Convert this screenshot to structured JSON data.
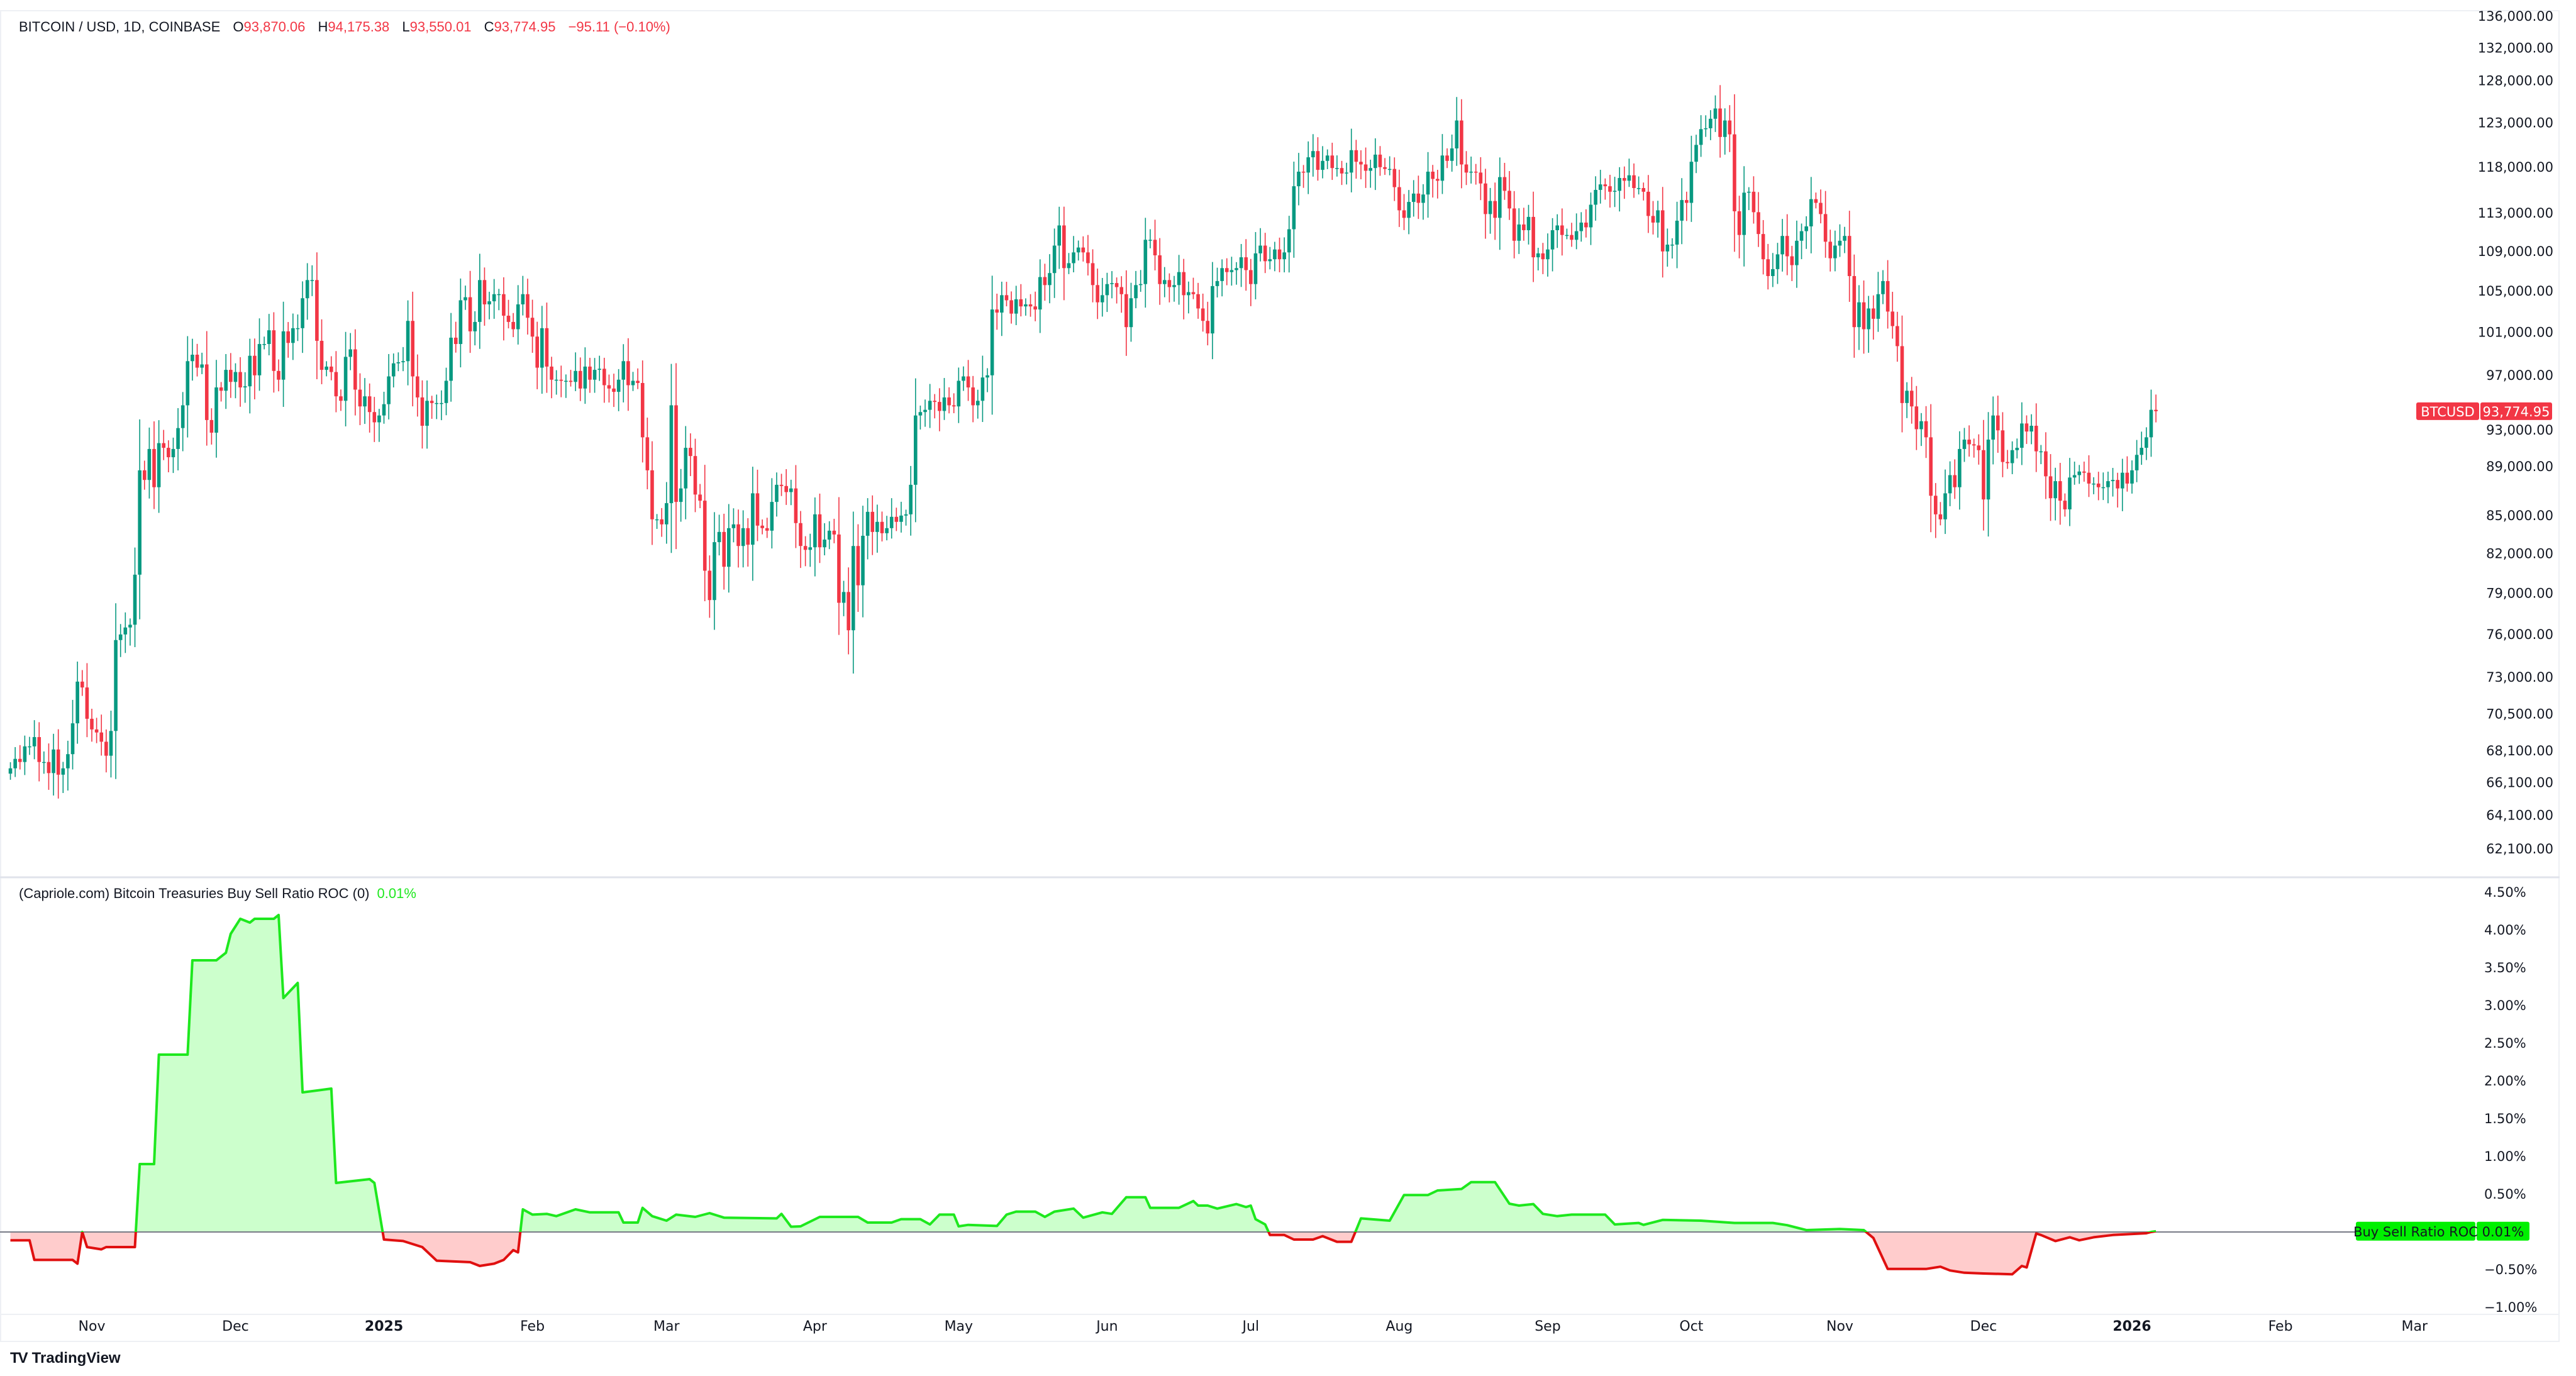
{
  "header": {
    "symbol": "BITCOIN / USD, 1D, COINBASE",
    "open_label": "O",
    "open": "93,870.06",
    "high_label": "H",
    "high": "94,175.38",
    "low_label": "L",
    "low": "93,550.01",
    "close_label": "C",
    "close": "93,774.95",
    "change": "−95.11 (−0.10%)"
  },
  "indicator_header": {
    "title": "(Capriole.com) Bitcoin Treasuries Buy Sell Ratio ROC (0)",
    "value": "0.01%"
  },
  "price_label": {
    "symbol": "BTCUSD",
    "value": "93,774.95",
    "price": 93774.95
  },
  "indicator_label": {
    "name": "Buy Sell Ratio ROC",
    "value": "0.01%",
    "numeric": 0.01
  },
  "footer": {
    "logo_text": "TradingView",
    "logo_mark": "TV"
  },
  "colors": {
    "up": "#089981",
    "down": "#f23645",
    "ind_pos": "#1ee81e",
    "ind_pos_fill": "#ccffcc",
    "ind_neg": "#e01010",
    "ind_neg_fill": "#ffcccc",
    "label_red": "#f23645",
    "label_green": "#00f000"
  },
  "chart_data": [
    {
      "type": "candlestick",
      "series": "BTCUSD daily",
      "y_scale": "log",
      "ylim": [
        62100,
        136000
      ],
      "price_ticks": [
        "136,000.00",
        "132,000.00",
        "128,000.00",
        "123,000.00",
        "118,000.00",
        "113,000.00",
        "109,000.00",
        "105,000.00",
        "101,000.00",
        "97,000.00",
        "93,000.00",
        "89,000.00",
        "85,000.00",
        "82,000.00",
        "79,000.00",
        "76,000.00",
        "73,000.00",
        "70,500.00",
        "68,100.00",
        "66,100.00",
        "64,100.00",
        "62,100.00"
      ],
      "first_date": "2024-10-15",
      "closes": [
        67000,
        67600,
        67400,
        68400,
        68400,
        69000,
        67400,
        67400,
        66700,
        68200,
        66600,
        67000,
        67900,
        69900,
        72700,
        72300,
        70200,
        69500,
        69300,
        68700,
        67800,
        69400,
        75600,
        76000,
        76500,
        76700,
        80400,
        88700,
        87900,
        90500,
        87300,
        91000,
        90600,
        89800,
        90500,
        92300,
        94300,
        98300,
        98900,
        97700,
        98000,
        93000,
        91900,
        95900,
        95600,
        97500,
        96400,
        97300,
        95900,
        96000,
        98800,
        97000,
        99900,
        99900,
        101200,
        97400,
        96600,
        101100,
        100000,
        101400,
        101400,
        104300,
        106100,
        106100,
        100200,
        97500,
        97800,
        97300,
        95100,
        94700,
        98700,
        99400,
        95700,
        94200,
        95100,
        93700,
        92800,
        93400,
        94400,
        96900,
        98100,
        98200,
        98300,
        102100,
        96900,
        95000,
        92500,
        94700,
        94500,
        94500,
        94500,
        96500,
        100500,
        99900,
        104100,
        104400,
        101100,
        102000,
        106100,
        103700,
        104000,
        104700,
        104700,
        102600,
        102000,
        101300,
        103700,
        104700,
        102400,
        100600,
        97700,
        101400,
        97800,
        96600,
        96600,
        96500,
        96500,
        96400,
        97400,
        95800,
        97800,
        96600,
        97500,
        97600,
        96100,
        95800,
        95500,
        96600,
        98300,
        96100,
        96500,
        96300,
        91500,
        88700,
        84700,
        84700,
        84300,
        86000,
        94300,
        86100,
        87200,
        90600,
        89900,
        86700,
        86200,
        80700,
        78500,
        82900,
        83700,
        81000,
        84000,
        84300,
        82600,
        84000,
        82700,
        86800,
        84200,
        84000,
        83800,
        86100,
        87500,
        87400,
        86900,
        87200,
        84400,
        82600,
        82300,
        82500,
        85100,
        82500,
        83100,
        83800,
        83500,
        78300,
        79100,
        76300,
        82600,
        79600,
        83400,
        85300,
        83700,
        84500,
        83600,
        84000,
        84900,
        84500,
        85000,
        85100,
        87500,
        93400,
        93700,
        93900,
        94700,
        94600,
        93800,
        95000,
        94300,
        94200,
        96500,
        96900,
        95900,
        94300,
        94700,
        96800,
        97000,
        103200,
        102900,
        104600,
        104100,
        102800,
        104200,
        103500,
        103700,
        103500,
        103200,
        106400,
        105600,
        106800,
        109600,
        111700,
        107300,
        107800,
        108900,
        109400,
        108900,
        107800,
        105600,
        103900,
        104600,
        105700,
        105800,
        105400,
        104700,
        101500,
        104300,
        105600,
        105700,
        110200,
        110200,
        108600,
        105700,
        106100,
        105400,
        105600,
        106900,
        104600,
        104900,
        104700,
        103300,
        102100,
        100900,
        105500,
        106000,
        107300,
        106900,
        107100,
        107300,
        108400,
        107100,
        105700,
        108800,
        109600,
        108000,
        108200,
        109200,
        108200,
        108900,
        111300,
        115900,
        117500,
        117400,
        119100,
        119800,
        117700,
        118700,
        119300,
        117900,
        117900,
        117300,
        117400,
        119900,
        118600,
        118300,
        117600,
        117900,
        119400,
        118000,
        117800,
        117800,
        115800,
        113300,
        112500,
        114200,
        115100,
        114100,
        115000,
        117500,
        116700,
        116500,
        119300,
        118700,
        120100,
        123300,
        118300,
        117400,
        117500,
        117400,
        116200,
        112900,
        114300,
        112500,
        116900,
        115400,
        113500,
        110100,
        111800,
        111200,
        112600,
        108400,
        108800,
        108200,
        109200,
        111200,
        111700,
        110700,
        110700,
        110200,
        111100,
        112000,
        111500,
        113900,
        115500,
        116100,
        115900,
        115300,
        115400,
        116800,
        116500,
        117100,
        115700,
        115700,
        115300,
        112700,
        112000,
        113300,
        109000,
        109700,
        109700,
        112200,
        114400,
        114100,
        118600,
        120500,
        122300,
        122400,
        123500,
        124700,
        121400,
        123300,
        121700,
        113200,
        110700,
        115200,
        115300,
        113100,
        110800,
        108200,
        106500,
        107200,
        108700,
        110600,
        108500,
        107600,
        110100,
        111100,
        111600,
        114500,
        114100,
        112900,
        110000,
        108300,
        109600,
        110100,
        110600,
        106500,
        101500,
        103900,
        101300,
        103300,
        102300,
        104700,
        106000,
        103000,
        101600,
        99700,
        94500,
        95600,
        94200,
        92200,
        92900,
        91500,
        86600,
        85100,
        84700,
        86800,
        88300,
        87300,
        90500,
        91300,
        90900,
        90800,
        90400,
        86300,
        91300,
        93400,
        92100,
        89400,
        89300,
        90400,
        90600,
        92700,
        92000,
        92500,
        90300,
        90300,
        88200,
        86400,
        87800,
        86200,
        85500,
        88100,
        88300,
        88600,
        88500,
        87600,
        87600,
        87300,
        87300,
        87800,
        87900,
        87200,
        88500,
        87600,
        88700,
        90000,
        90600,
        91500,
        93900,
        93775
      ]
    },
    {
      "type": "area",
      "series": "Buy Sell Ratio ROC",
      "unit": "%",
      "ylim": [
        -1.0,
        4.5
      ],
      "baseline": 0,
      "value_ticks": [
        "4.50%",
        "4.00%",
        "3.50%",
        "3.00%",
        "2.50%",
        "2.00%",
        "1.50%",
        "1.00%",
        "0.50%",
        "−0.50%",
        "−1.00%"
      ],
      "points": [
        [
          "2024-10-15",
          -0.11
        ],
        [
          "2024-10-19",
          -0.11
        ],
        [
          "2024-10-20",
          -0.37
        ],
        [
          "2024-10-28",
          -0.37
        ],
        [
          "2024-10-29",
          -0.42
        ],
        [
          "2024-10-30",
          0.0
        ],
        [
          "2024-10-31",
          -0.2
        ],
        [
          "2024-11-03",
          -0.23
        ],
        [
          "2024-11-04",
          -0.2
        ],
        [
          "2024-11-10",
          -0.2
        ],
        [
          "2024-11-11",
          0.9
        ],
        [
          "2024-11-14",
          0.9
        ],
        [
          "2024-11-15",
          2.35
        ],
        [
          "2024-11-21",
          2.35
        ],
        [
          "2024-11-22",
          3.6
        ],
        [
          "2024-11-27",
          3.6
        ],
        [
          "2024-11-29",
          3.7
        ],
        [
          "2024-11-30",
          3.95
        ],
        [
          "2024-12-02",
          4.15
        ],
        [
          "2024-12-04",
          4.1
        ],
        [
          "2024-12-05",
          4.15
        ],
        [
          "2024-12-09",
          4.15
        ],
        [
          "2024-12-10",
          4.2
        ],
        [
          "2024-12-11",
          3.1
        ],
        [
          "2024-12-14",
          3.3
        ],
        [
          "2024-12-15",
          1.85
        ],
        [
          "2024-12-21",
          1.9
        ],
        [
          "2024-12-22",
          0.65
        ],
        [
          "2024-12-29",
          0.7
        ],
        [
          "2024-12-30",
          0.65
        ],
        [
          "2025-01-01",
          -0.1
        ],
        [
          "2025-01-05",
          -0.12
        ],
        [
          "2025-01-09",
          -0.2
        ],
        [
          "2025-01-12",
          -0.38
        ],
        [
          "2025-01-19",
          -0.4
        ],
        [
          "2025-01-21",
          -0.45
        ],
        [
          "2025-01-24",
          -0.42
        ],
        [
          "2025-01-26",
          -0.37
        ],
        [
          "2025-01-28",
          -0.24
        ],
        [
          "2025-01-29",
          -0.27
        ],
        [
          "2025-01-30",
          0.3
        ],
        [
          "2025-02-01",
          0.23
        ],
        [
          "2025-02-04",
          0.24
        ],
        [
          "2025-02-06",
          0.21
        ],
        [
          "2025-02-10",
          0.3
        ],
        [
          "2025-02-13",
          0.26
        ],
        [
          "2025-02-19",
          0.26
        ],
        [
          "2025-02-20",
          0.125
        ],
        [
          "2025-02-23",
          0.125
        ],
        [
          "2025-02-24",
          0.32
        ],
        [
          "2025-02-26",
          0.21
        ],
        [
          "2025-03-01",
          0.15
        ],
        [
          "2025-03-03",
          0.23
        ],
        [
          "2025-03-07",
          0.2
        ],
        [
          "2025-03-10",
          0.25
        ],
        [
          "2025-03-13",
          0.19
        ],
        [
          "2025-03-24",
          0.18
        ],
        [
          "2025-03-25",
          0.24
        ],
        [
          "2025-03-27",
          0.07
        ],
        [
          "2025-03-29",
          0.075
        ],
        [
          "2025-04-02",
          0.2
        ],
        [
          "2025-04-10",
          0.2
        ],
        [
          "2025-04-12",
          0.125
        ],
        [
          "2025-04-17",
          0.125
        ],
        [
          "2025-04-19",
          0.17
        ],
        [
          "2025-04-23",
          0.17
        ],
        [
          "2025-04-25",
          0.1
        ],
        [
          "2025-04-27",
          0.23
        ],
        [
          "2025-04-30",
          0.23
        ],
        [
          "2025-05-01",
          0.075
        ],
        [
          "2025-05-03",
          0.094
        ],
        [
          "2025-05-09",
          0.08
        ],
        [
          "2025-05-11",
          0.23
        ],
        [
          "2025-05-13",
          0.27
        ],
        [
          "2025-05-17",
          0.27
        ],
        [
          "2025-05-19",
          0.2
        ],
        [
          "2025-05-21",
          0.27
        ],
        [
          "2025-05-25",
          0.31
        ],
        [
          "2025-05-27",
          0.19
        ],
        [
          "2025-05-31",
          0.26
        ],
        [
          "2025-06-02",
          0.24
        ],
        [
          "2025-06-05",
          0.46
        ],
        [
          "2025-06-09",
          0.46
        ],
        [
          "2025-06-10",
          0.32
        ],
        [
          "2025-06-16",
          0.32
        ],
        [
          "2025-06-19",
          0.41
        ],
        [
          "2025-06-20",
          0.35
        ],
        [
          "2025-06-22",
          0.35
        ],
        [
          "2025-06-24",
          0.31
        ],
        [
          "2025-06-28",
          0.37
        ],
        [
          "2025-06-30",
          0.33
        ],
        [
          "2025-07-01",
          0.35
        ],
        [
          "2025-07-02",
          0.17
        ],
        [
          "2025-07-04",
          0.1
        ],
        [
          "2025-07-05",
          -0.04
        ],
        [
          "2025-07-08",
          -0.04
        ],
        [
          "2025-07-10",
          -0.1
        ],
        [
          "2025-07-14",
          -0.1
        ],
        [
          "2025-07-16",
          -0.055
        ],
        [
          "2025-07-19",
          -0.13
        ],
        [
          "2025-07-22",
          -0.13
        ],
        [
          "2025-07-24",
          0.18
        ],
        [
          "2025-07-30",
          0.15
        ],
        [
          "2025-08-02",
          0.49
        ],
        [
          "2025-08-07",
          0.49
        ],
        [
          "2025-08-09",
          0.55
        ],
        [
          "2025-08-14",
          0.57
        ],
        [
          "2025-08-16",
          0.66
        ],
        [
          "2025-08-21",
          0.66
        ],
        [
          "2025-08-24",
          0.375
        ],
        [
          "2025-08-26",
          0.35
        ],
        [
          "2025-08-29",
          0.37
        ],
        [
          "2025-08-31",
          0.24
        ],
        [
          "2025-09-03",
          0.21
        ],
        [
          "2025-09-06",
          0.23
        ],
        [
          "2025-09-13",
          0.23
        ],
        [
          "2025-09-15",
          0.1
        ],
        [
          "2025-09-20",
          0.12
        ],
        [
          "2025-09-21",
          0.094
        ],
        [
          "2025-09-25",
          0.16
        ],
        [
          "2025-10-03",
          0.15
        ],
        [
          "2025-10-10",
          0.12
        ],
        [
          "2025-10-18",
          0.12
        ],
        [
          "2025-10-21",
          0.09
        ],
        [
          "2025-10-25",
          0.025
        ],
        [
          "2025-11-01",
          0.04
        ],
        [
          "2025-11-06",
          0.025
        ],
        [
          "2025-11-08",
          -0.08
        ],
        [
          "2025-11-11",
          -0.49
        ],
        [
          "2025-11-19",
          -0.49
        ],
        [
          "2025-11-22",
          -0.46
        ],
        [
          "2025-11-24",
          -0.51
        ],
        [
          "2025-11-27",
          -0.54
        ],
        [
          "2025-12-01",
          -0.55
        ],
        [
          "2025-12-07",
          -0.56
        ],
        [
          "2025-12-09",
          -0.45
        ],
        [
          "2025-12-10",
          -0.47
        ],
        [
          "2025-12-12",
          -0.02
        ],
        [
          "2025-12-13",
          -0.04
        ],
        [
          "2025-12-16",
          -0.12
        ],
        [
          "2025-12-19",
          -0.07
        ],
        [
          "2025-12-21",
          -0.11
        ],
        [
          "2025-12-24",
          -0.07
        ],
        [
          "2025-12-28",
          -0.04
        ],
        [
          "2026-01-04",
          -0.017
        ],
        [
          "2026-01-05",
          0.0
        ],
        [
          "2026-01-06",
          0.01
        ]
      ]
    }
  ],
  "time_axis": [
    {
      "label": "Nov",
      "date": "2024-11-01",
      "bold": false
    },
    {
      "label": "Dec",
      "date": "2024-12-01",
      "bold": false
    },
    {
      "label": "2025",
      "date": "2025-01-01",
      "bold": true
    },
    {
      "label": "Feb",
      "date": "2025-02-01",
      "bold": false
    },
    {
      "label": "Mar",
      "date": "2025-03-01",
      "bold": false
    },
    {
      "label": "Apr",
      "date": "2025-04-01",
      "bold": false
    },
    {
      "label": "May",
      "date": "2025-05-01",
      "bold": false
    },
    {
      "label": "Jun",
      "date": "2025-06-01",
      "bold": false
    },
    {
      "label": "Jul",
      "date": "2025-07-01",
      "bold": false
    },
    {
      "label": "Aug",
      "date": "2025-08-01",
      "bold": false
    },
    {
      "label": "Sep",
      "date": "2025-09-01",
      "bold": false
    },
    {
      "label": "Oct",
      "date": "2025-10-01",
      "bold": false
    },
    {
      "label": "Nov",
      "date": "2025-11-01",
      "bold": false
    },
    {
      "label": "Dec",
      "date": "2025-12-01",
      "bold": false
    },
    {
      "label": "2026",
      "date": "2026-01-01",
      "bold": true
    },
    {
      "label": "Feb",
      "date": "2026-02-01",
      "bold": false
    },
    {
      "label": "Mar",
      "date": "2026-03-01",
      "bold": false
    }
  ]
}
